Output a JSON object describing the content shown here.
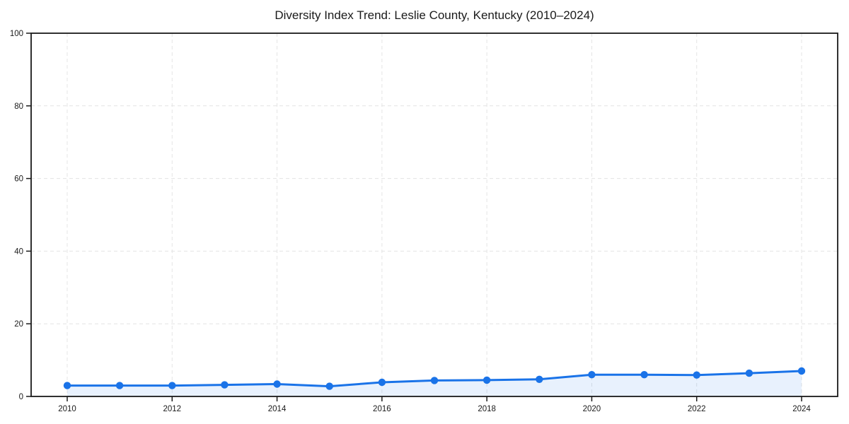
{
  "chart_data": {
    "type": "area",
    "title": "Diversity Index Trend: Leslie County, Kentucky (2010–2024)",
    "series_name": "Diversity Index",
    "x": [
      2010,
      2011,
      2012,
      2013,
      2014,
      2015,
      2016,
      2017,
      2018,
      2019,
      2020,
      2021,
      2022,
      2023,
      2024
    ],
    "values": [
      3.0,
      3.0,
      3.0,
      3.2,
      3.4,
      2.8,
      3.9,
      4.4,
      4.5,
      4.7,
      6.0,
      6.0,
      5.9,
      6.4,
      7.0
    ],
    "xlabel": "",
    "ylabel": "",
    "ylim": [
      0,
      100
    ],
    "yticks": [
      0,
      20,
      40,
      60,
      80,
      100
    ],
    "xticks": [
      2010,
      2012,
      2014,
      2016,
      2018,
      2020,
      2022,
      2024
    ],
    "grid": "dashed",
    "legend": "none",
    "colors": {
      "line": "#1a73e8",
      "marker": "#1a73e8",
      "fill": "rgba(26,115,232,0.10)",
      "grid": "#e4e4e4",
      "axis": "#1a1a1a",
      "text": "#1a1a1a",
      "background": "#ffffff"
    }
  }
}
